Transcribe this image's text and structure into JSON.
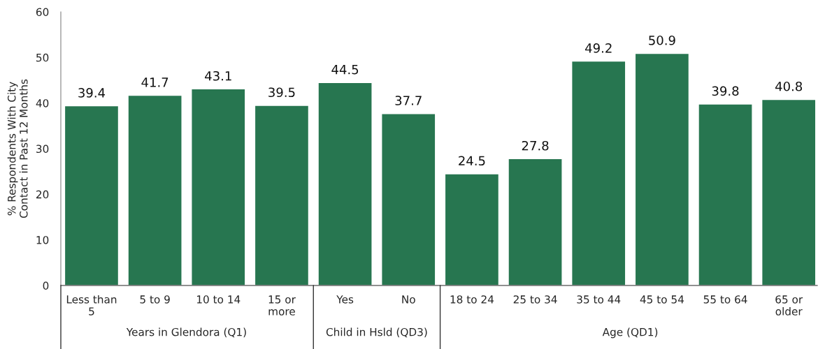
{
  "chart_data": {
    "type": "bar",
    "ylabel": "% Respondents With City\nContact in Past 12 Months",
    "categories": [
      "Less than\n5",
      "5 to 9",
      "10 to 14",
      "15 or\nmore",
      "Yes",
      "No",
      "18 to 24",
      "25 to 34",
      "35 to 44",
      "45 to 54",
      "55 to 64",
      "65 or\nolder"
    ],
    "values": [
      39.4,
      41.7,
      43.1,
      39.5,
      44.5,
      37.7,
      24.5,
      27.8,
      49.2,
      50.9,
      39.8,
      40.8
    ],
    "color": "#277650",
    "ylim": [
      0,
      60
    ],
    "yticks": [
      0,
      10,
      20,
      30,
      40,
      50,
      60
    ],
    "grid": false,
    "data_labels": true,
    "annotations": [
      "Years in Glendora (Q1)",
      "Child in Hsld (QD3)",
      "Age (QD1)"
    ]
  }
}
